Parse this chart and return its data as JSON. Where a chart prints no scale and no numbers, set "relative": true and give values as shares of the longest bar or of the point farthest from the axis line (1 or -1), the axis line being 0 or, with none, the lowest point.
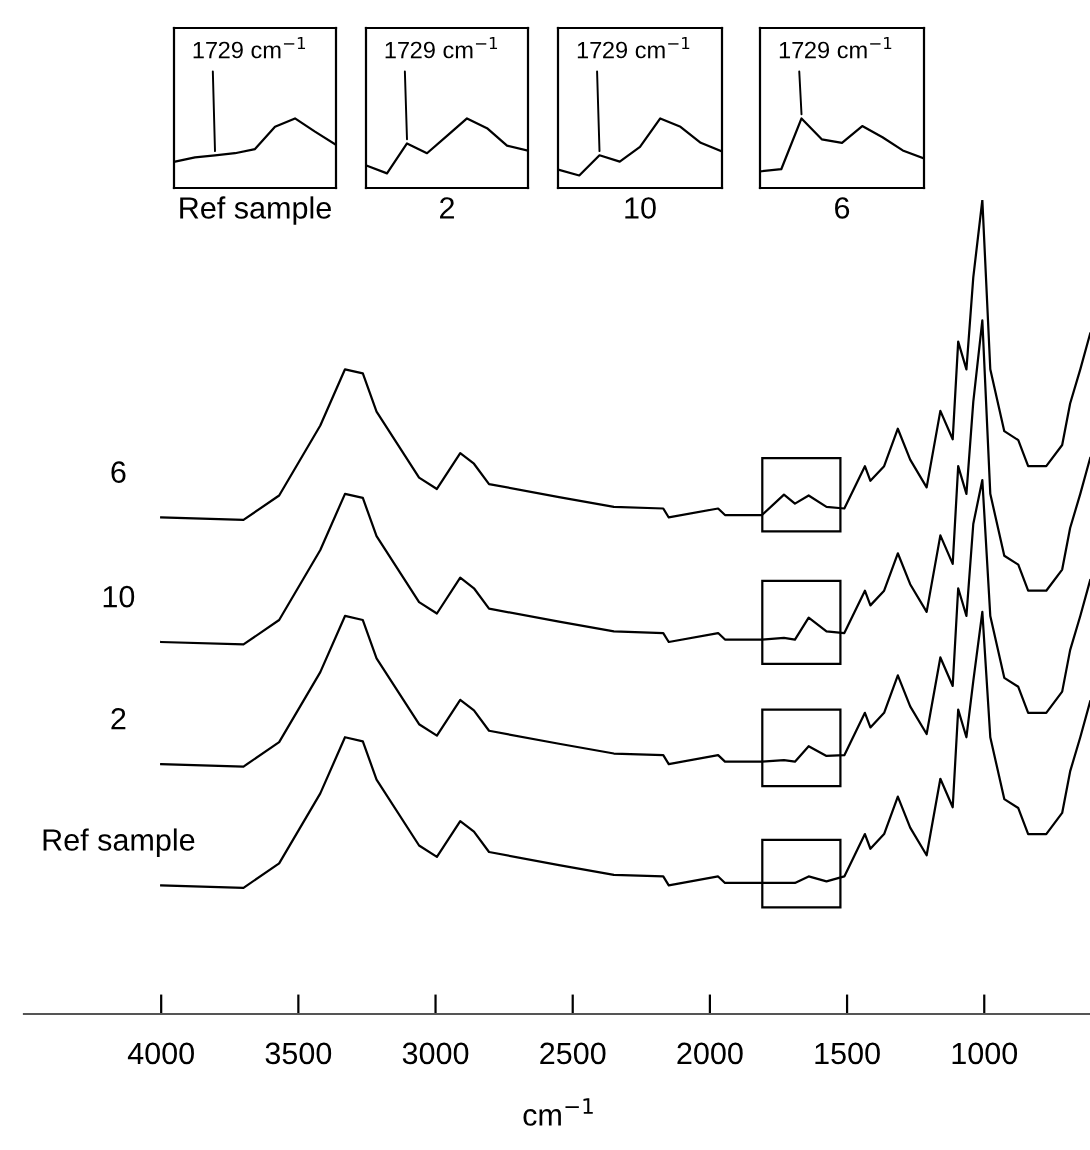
{
  "chart_data": [
    {
      "type": "line",
      "relative": true,
      "xlabel": "cm$^{−1}$",
      "xlim": [
        4500,
        600
      ],
      "xticks": [
        4000,
        3500,
        3000,
        2500,
        2000,
        1500,
        1000
      ],
      "tick_labels": "x",
      "x": [
        4000,
        3700,
        3570,
        3420,
        3330,
        3265,
        3215,
        3060,
        2995,
        2910,
        2860,
        2805,
        2550,
        2350,
        2170,
        2150,
        1970,
        1945,
        1810,
        1730,
        1690,
        1640,
        1575,
        1510,
        1435,
        1415,
        1365,
        1315,
        1270,
        1210,
        1160,
        1115,
        1095,
        1065,
        1040,
        1007,
        978,
        927,
        876,
        840,
        774,
        716,
        687,
        650,
        614
      ],
      "series": [
        {
          "name": "6",
          "color": "#000000",
          "values": [
            0.61,
            0.607,
            0.637,
            0.723,
            0.792,
            0.787,
            0.74,
            0.659,
            0.645,
            0.689,
            0.676,
            0.651,
            0.635,
            0.623,
            0.621,
            0.61,
            0.621,
            0.613,
            0.613,
            0.638,
            0.627,
            0.637,
            0.623,
            0.621,
            0.673,
            0.655,
            0.673,
            0.719,
            0.681,
            0.647,
            0.741,
            0.706,
            0.826,
            0.792,
            0.905,
            1.0,
            0.792,
            0.716,
            0.705,
            0.673,
            0.673,
            0.699,
            0.75,
            0.792,
            0.836
          ]
        },
        {
          "name": "10",
          "color": "#000000",
          "values": [
            0.457,
            0.454,
            0.484,
            0.57,
            0.639,
            0.634,
            0.587,
            0.506,
            0.492,
            0.536,
            0.523,
            0.498,
            0.482,
            0.47,
            0.468,
            0.457,
            0.468,
            0.46,
            0.46,
            0.462,
            0.46,
            0.487,
            0.47,
            0.468,
            0.52,
            0.502,
            0.52,
            0.566,
            0.528,
            0.494,
            0.588,
            0.553,
            0.673,
            0.639,
            0.752,
            0.852,
            0.639,
            0.563,
            0.552,
            0.52,
            0.52,
            0.546,
            0.597,
            0.639,
            0.683
          ]
        },
        {
          "name": "2",
          "color": "#000000",
          "values": [
            0.307,
            0.304,
            0.334,
            0.42,
            0.489,
            0.484,
            0.437,
            0.356,
            0.342,
            0.386,
            0.373,
            0.348,
            0.332,
            0.32,
            0.318,
            0.307,
            0.318,
            0.31,
            0.31,
            0.312,
            0.31,
            0.329,
            0.317,
            0.318,
            0.37,
            0.352,
            0.37,
            0.416,
            0.378,
            0.344,
            0.438,
            0.403,
            0.523,
            0.489,
            0.602,
            0.656,
            0.489,
            0.413,
            0.402,
            0.37,
            0.37,
            0.396,
            0.447,
            0.489,
            0.533
          ]
        },
        {
          "name": "Ref sample",
          "color": "#000000",
          "values": [
            0.158,
            0.155,
            0.185,
            0.271,
            0.34,
            0.335,
            0.288,
            0.207,
            0.193,
            0.237,
            0.224,
            0.199,
            0.183,
            0.171,
            0.169,
            0.158,
            0.169,
            0.161,
            0.161,
            0.161,
            0.161,
            0.169,
            0.163,
            0.169,
            0.221,
            0.203,
            0.221,
            0.267,
            0.229,
            0.195,
            0.289,
            0.254,
            0.374,
            0.34,
            0.409,
            0.494,
            0.34,
            0.264,
            0.253,
            0.221,
            0.221,
            0.247,
            0.298,
            0.34,
            0.384
          ]
        }
      ]
    },
    {
      "type": "line",
      "relative": true,
      "xlabel": "Ref sample",
      "tick_labels": false,
      "categories": [
        null,
        null,
        null,
        null,
        null,
        null,
        null,
        null,
        null
      ],
      "series": [
        {
          "color": "#000000",
          "values": [
            0.38,
            0.44,
            0.47,
            0.5,
            0.56,
            0.88,
            1.0,
            0.81,
            0.63
          ]
        }
      ],
      "annotations": [
        "1729 cm$^{−1}$"
      ]
    },
    {
      "type": "line",
      "relative": true,
      "xlabel": "2",
      "tick_labels": false,
      "categories": [
        null,
        null,
        null,
        null,
        null,
        null,
        null,
        null,
        null
      ],
      "series": [
        {
          "color": "#000000",
          "values": [
            0.32,
            0.21,
            0.64,
            0.5,
            0.75,
            1.0,
            0.86,
            0.61,
            0.54
          ]
        }
      ],
      "annotations": [
        "1729 cm$^{−1}$"
      ]
    },
    {
      "type": "line",
      "relative": true,
      "xlabel": "10",
      "tick_labels": false,
      "categories": [
        null,
        null,
        null,
        null,
        null,
        null,
        null,
        null,
        null
      ],
      "series": [
        {
          "color": "#000000",
          "values": [
            0.26,
            0.18,
            0.47,
            0.38,
            0.59,
            1.0,
            0.88,
            0.65,
            0.53
          ]
        }
      ],
      "annotations": [
        "1729 cm$^{−1}$"
      ]
    },
    {
      "type": "line",
      "relative": true,
      "xlabel": "6",
      "tick_labels": false,
      "categories": [
        null,
        null,
        null,
        null,
        null,
        null,
        null,
        null,
        null
      ],
      "series": [
        {
          "color": "#000000",
          "values": [
            0.24,
            0.27,
            1.0,
            0.7,
            0.65,
            0.89,
            0.73,
            0.54,
            0.43
          ]
        }
      ],
      "annotations": [
        "1729 cm$^{−1}$"
      ]
    }
  ]
}
